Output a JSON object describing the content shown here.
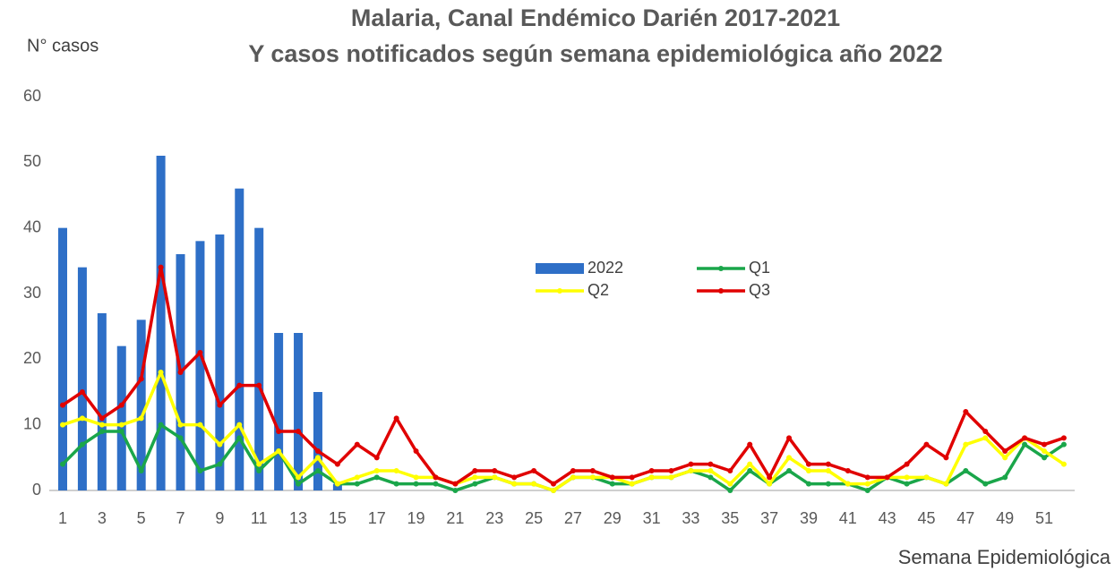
{
  "chart_data": {
    "type": "combo",
    "title": "Malaria, Canal Endémico Darién 2017-2021",
    "subtitle": "Y casos notificados según semana epidemiológica año 2022",
    "ylabel": "N° casos",
    "xlabel": "Semana Epidemiológica",
    "categories": [
      1,
      null,
      3,
      null,
      5,
      null,
      7,
      null,
      9,
      null,
      11,
      null,
      13,
      null,
      15,
      null,
      17,
      null,
      19,
      null,
      21,
      null,
      23,
      null,
      25,
      null,
      27,
      null,
      29,
      null,
      31,
      null,
      33,
      null,
      35,
      null,
      37,
      null,
      39,
      null,
      41,
      null,
      43,
      null,
      45,
      null,
      47,
      null,
      49,
      null,
      51,
      null
    ],
    "ylim": [
      0,
      60
    ],
    "yticks": [
      0,
      10,
      20,
      30,
      40,
      50,
      60
    ],
    "grid": false,
    "legend": "center",
    "series": [
      {
        "name": "2022",
        "type": "bar",
        "color": "#2e6fc7",
        "values": [
          40,
          34,
          27,
          22,
          26,
          51,
          36,
          38,
          39,
          46,
          40,
          24,
          24,
          15,
          1,
          null,
          null,
          null,
          null,
          null,
          null,
          null,
          null,
          null,
          null,
          null,
          null,
          null,
          null,
          null,
          null,
          null,
          null,
          null,
          null,
          null,
          null,
          null,
          null,
          null,
          null,
          null,
          null,
          null,
          null,
          null,
          null,
          null,
          null,
          null,
          null,
          null
        ]
      },
      {
        "name": "Q1",
        "type": "line",
        "color": "#1aa64a",
        "values": [
          4,
          7,
          9,
          9,
          3,
          10,
          8,
          3,
          4,
          8,
          3,
          6,
          1,
          3,
          1,
          1,
          2,
          1,
          1,
          1,
          0,
          1,
          2,
          1,
          1,
          0,
          2,
          2,
          1,
          1,
          2,
          2,
          3,
          2,
          0,
          3,
          1,
          3,
          1,
          1,
          1,
          0,
          2,
          1,
          2,
          1,
          3,
          1,
          2,
          7,
          5,
          7
        ]
      },
      {
        "name": "Q2",
        "type": "line",
        "color": "#ffff00",
        "values": [
          10,
          11,
          10,
          10,
          11,
          18,
          10,
          10,
          7,
          10,
          4,
          6,
          2,
          5,
          1,
          2,
          3,
          3,
          2,
          2,
          1,
          2,
          2,
          1,
          1,
          0,
          2,
          2,
          2,
          1,
          2,
          2,
          3,
          3,
          1,
          4,
          1,
          5,
          3,
          3,
          1,
          1,
          2,
          2,
          2,
          1,
          7,
          8,
          5,
          8,
          6,
          4
        ]
      },
      {
        "name": "Q3",
        "type": "line",
        "color": "#e00000",
        "values": [
          13,
          15,
          11,
          13,
          17,
          34,
          18,
          21,
          13,
          16,
          16,
          9,
          9,
          6,
          4,
          7,
          5,
          11,
          6,
          2,
          1,
          3,
          3,
          2,
          3,
          1,
          3,
          3,
          2,
          2,
          3,
          3,
          4,
          4,
          3,
          7,
          2,
          8,
          4,
          4,
          3,
          2,
          2,
          4,
          7,
          5,
          12,
          9,
          6,
          8,
          7,
          8
        ]
      }
    ]
  }
}
